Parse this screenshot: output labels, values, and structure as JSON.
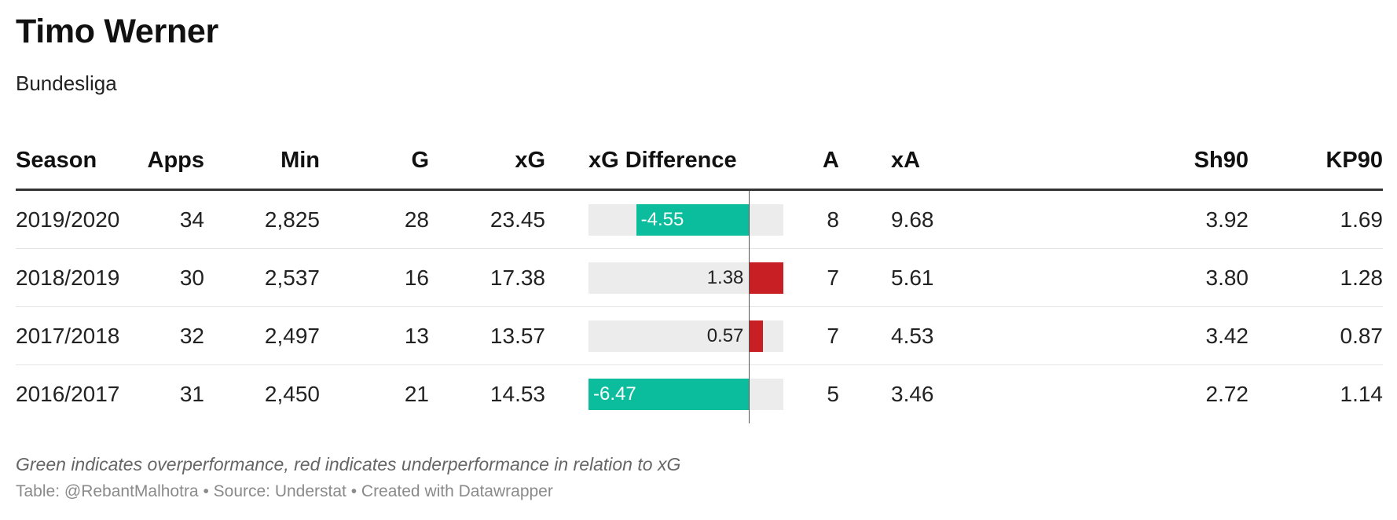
{
  "title": "Timo Werner",
  "subtitle": "Bundesliga",
  "columns": [
    "Season",
    "Apps",
    "Min",
    "G",
    "xG",
    "xG Difference",
    "A",
    "xA",
    "Sh90",
    "KP90"
  ],
  "rows": [
    {
      "season": "2019/2020",
      "apps": "34",
      "min": "2,825",
      "g": "28",
      "xg": "23.45",
      "xg_diff": "-4.55",
      "a": "8",
      "xa": "9.68",
      "sh90": "3.92",
      "kp90": "1.69"
    },
    {
      "season": "2018/2019",
      "apps": "30",
      "min": "2,537",
      "g": "16",
      "xg": "17.38",
      "xg_diff": "1.38",
      "a": "7",
      "xa": "5.61",
      "sh90": "3.80",
      "kp90": "1.28"
    },
    {
      "season": "2017/2018",
      "apps": "32",
      "min": "2,497",
      "g": "13",
      "xg": "13.57",
      "xg_diff": "0.57",
      "a": "7",
      "xa": "4.53",
      "sh90": "3.42",
      "kp90": "0.87"
    },
    {
      "season": "2016/2017",
      "apps": "31",
      "min": "2,450",
      "g": "21",
      "xg": "14.53",
      "xg_diff": "-6.47",
      "a": "5",
      "xa": "3.46",
      "sh90": "2.72",
      "kp90": "1.14"
    }
  ],
  "chart_data": {
    "type": "bar",
    "categories": [
      "2019/2020",
      "2018/2019",
      "2017/2018",
      "2016/2017"
    ],
    "series": [
      {
        "name": "xG Difference",
        "values": [
          -4.55,
          1.38,
          0.57,
          -6.47
        ]
      }
    ],
    "xlim": [
      -6.47,
      1.38
    ],
    "colors": {
      "negative": "#0bbd9c",
      "positive": "#c81f24",
      "track": "#ececec",
      "axis": "#555555"
    }
  },
  "note": "Green indicates overperformance, red indicates underperformance in relation to xG",
  "footer": "Table: @RebantMalhotra • Source: Understat • Created with Datawrapper"
}
